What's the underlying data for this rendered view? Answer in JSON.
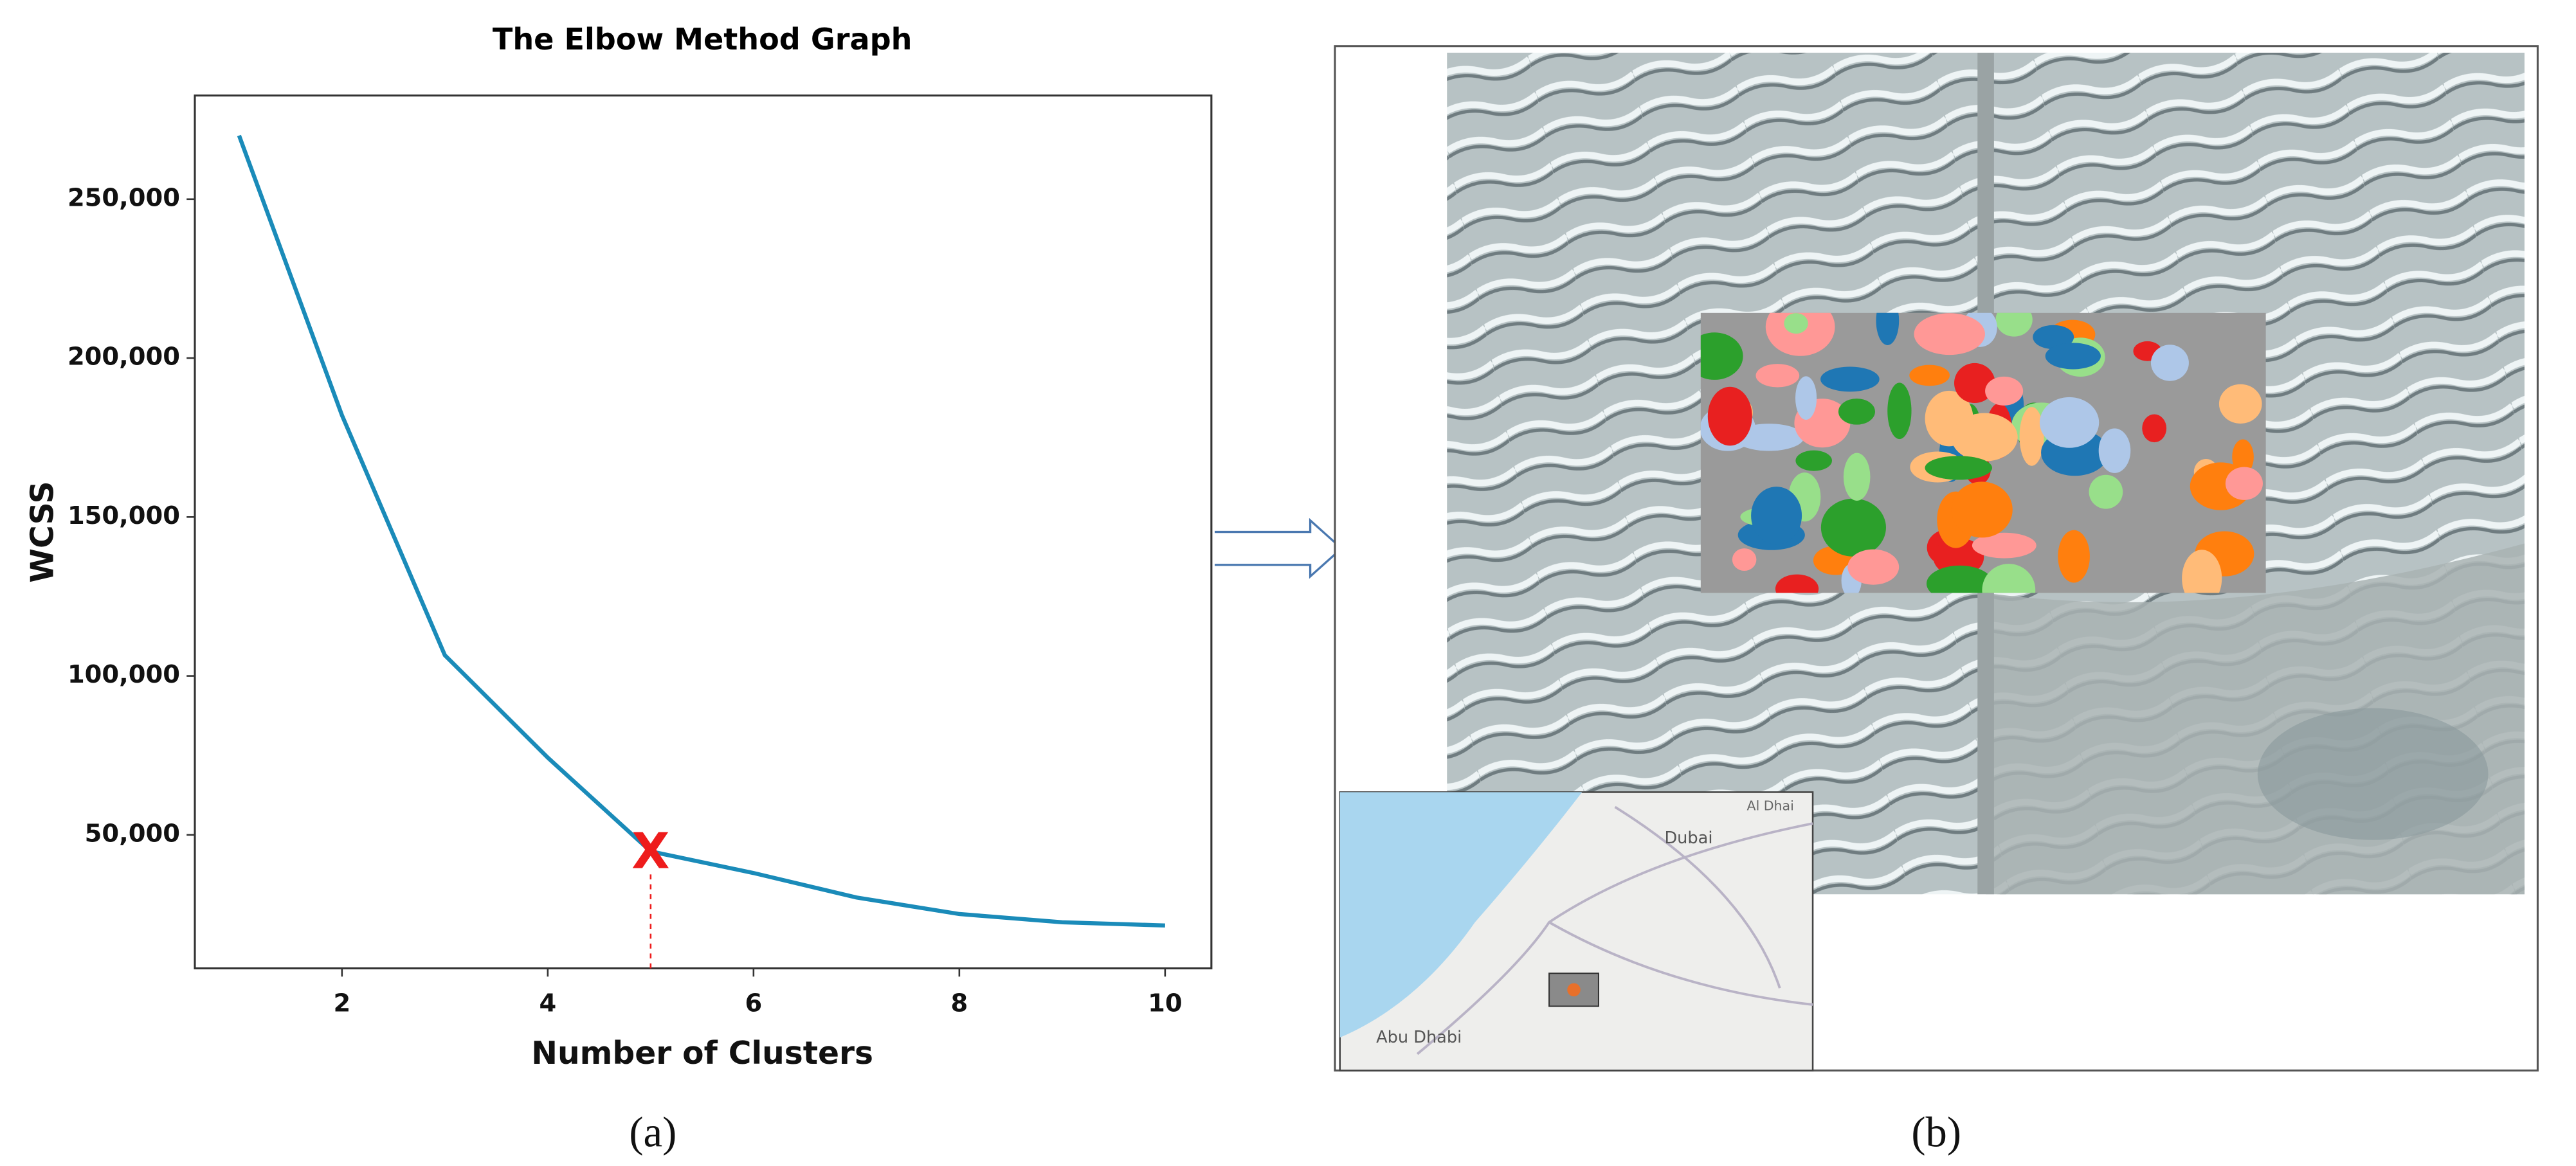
{
  "chart_data": {
    "type": "line",
    "title": "The Elbow Method Graph",
    "x_label": "Number of Clusters",
    "y_label": "WCSS",
    "x": [
      1,
      2,
      3,
      4,
      5,
      6,
      7,
      8,
      9,
      10
    ],
    "series": [
      {
        "name": "WCSS",
        "color": "#1a8bb9",
        "values": [
          270000,
          182000,
          106500,
          74300,
          44800,
          38000,
          30300,
          25100,
          22500,
          21500
        ]
      }
    ],
    "xlim": [
      0.57,
      10.45
    ],
    "ylim": [
      8000,
      282600
    ],
    "xticks": [
      2,
      4,
      6,
      8,
      10
    ],
    "yticks": [
      {
        "value": 50000,
        "label": "50,000"
      },
      {
        "value": 100000,
        "label": "100,000"
      },
      {
        "value": 150000,
        "label": "150,000"
      },
      {
        "value": 200000,
        "label": "200,000"
      },
      {
        "value": 250000,
        "label": "250,000"
      }
    ],
    "elbow": {
      "x": 5,
      "label": "X",
      "color": "#ee1c1c"
    }
  },
  "captions": {
    "a": "(a)",
    "b": "(b)"
  },
  "map_labels": {
    "dubai": "Dubai",
    "abu_dhabi": "Abu Dhabi",
    "al_dhaid": "Al Dhai"
  }
}
